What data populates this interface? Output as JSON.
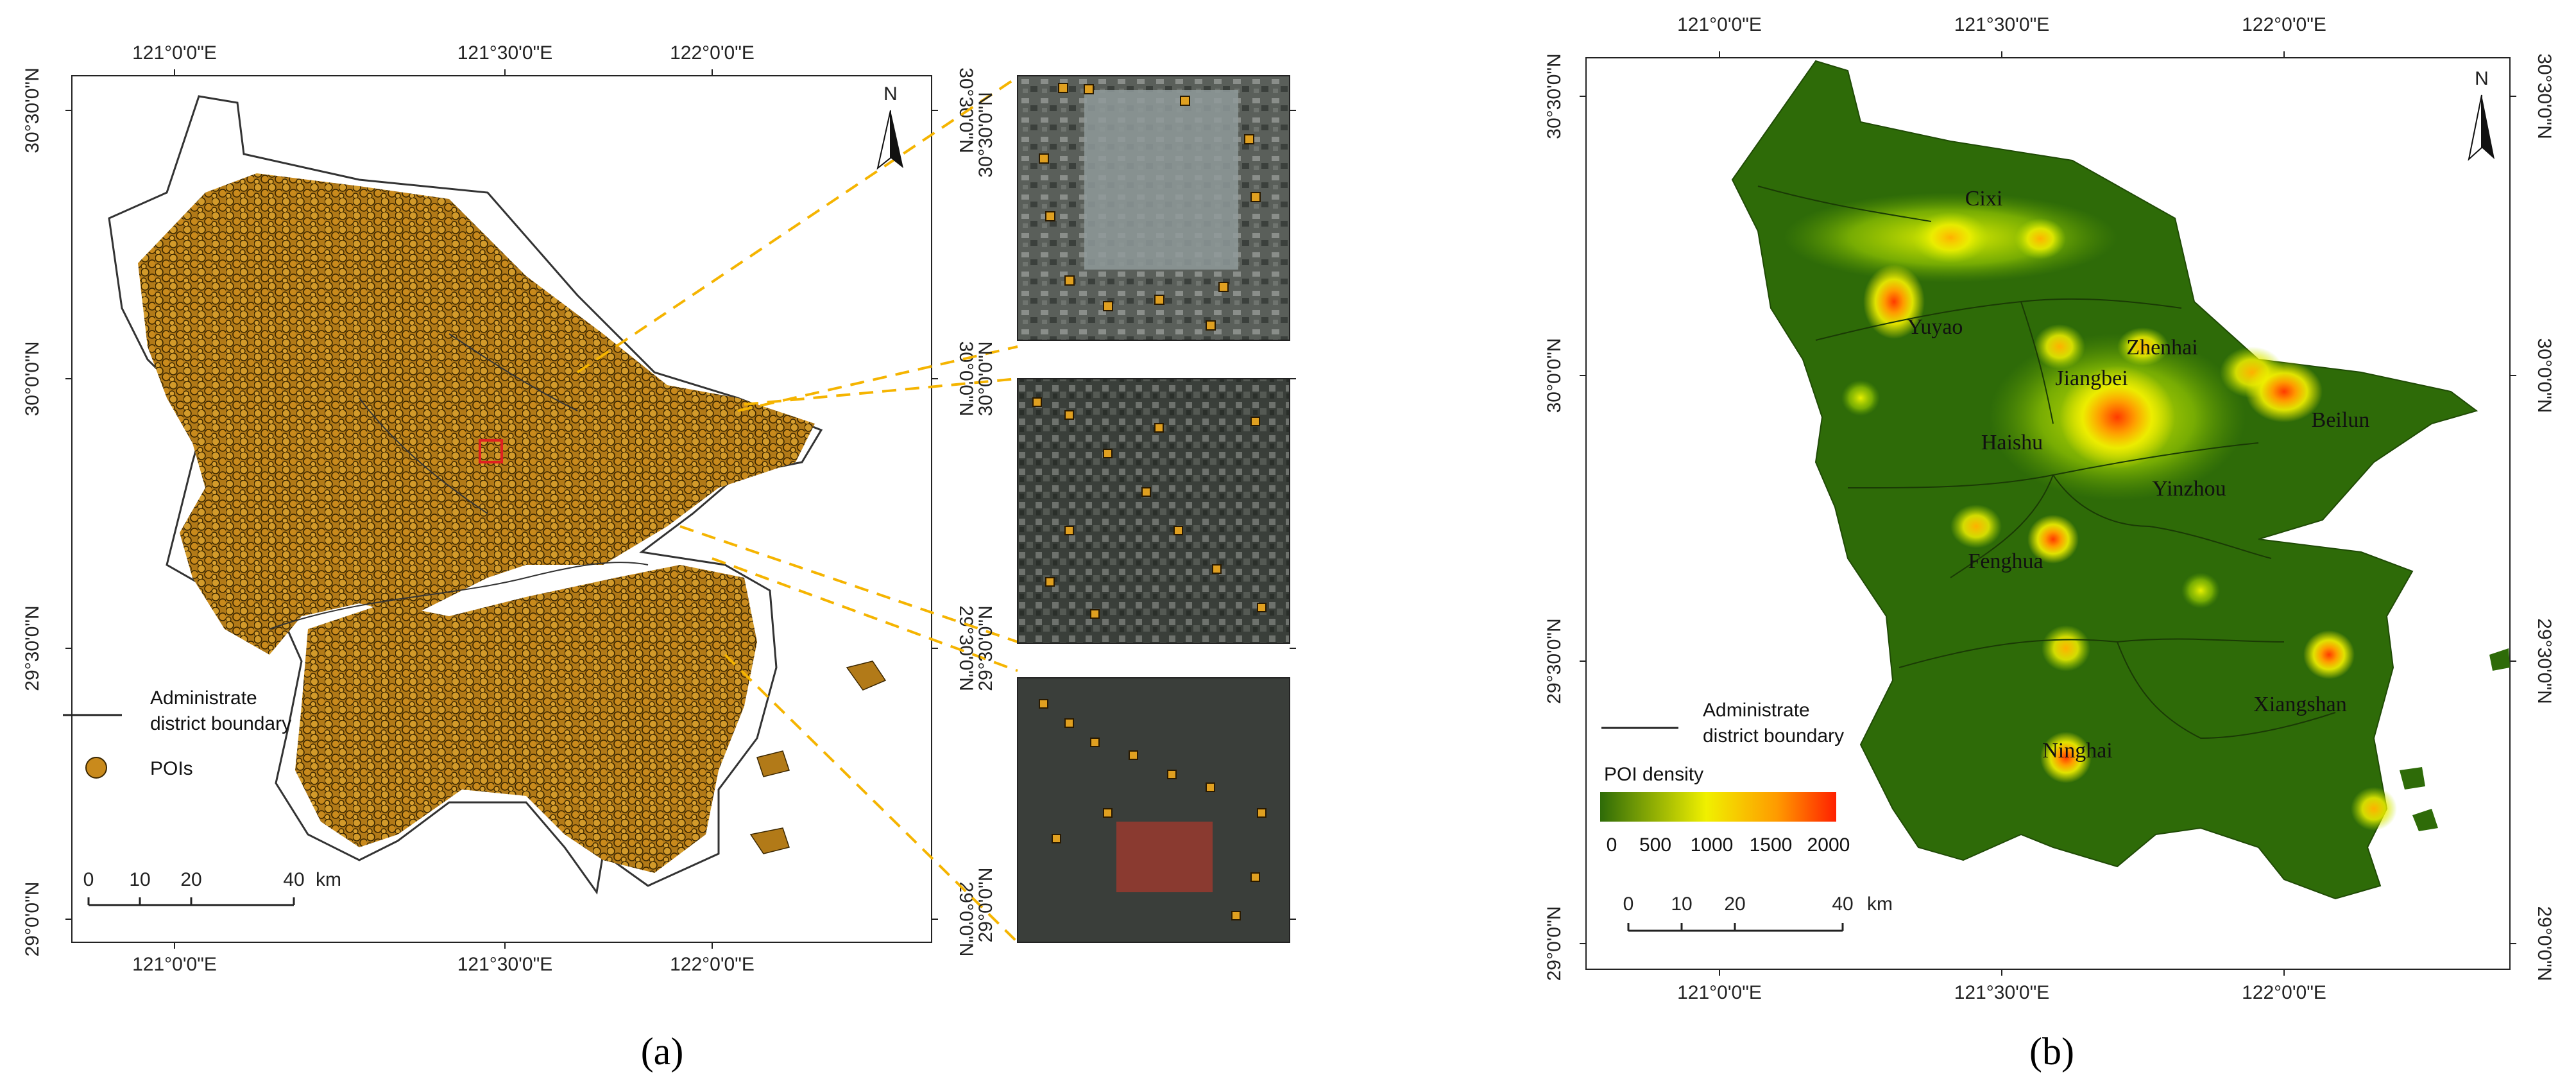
{
  "panel_a": {
    "caption": "(a)",
    "top_ticks": [
      "121°0'0\"E",
      "121°30'0\"E",
      "122°0'0\"E"
    ],
    "bottom_ticks": [
      "121°0'0\"E",
      "121°30'0\"E",
      "122°0'0\"E"
    ],
    "left_ticks": [
      "30°30'0\"N",
      "30°0'0\"N",
      "29°30'0\"N",
      "29°0'0\"N"
    ],
    "right_ticks": [
      "30°30'0\"N",
      "30°0'0\"N",
      "29°30'0\"N",
      "29°0'0\"N"
    ],
    "north_label": "N",
    "legend": {
      "boundary_line1": "Administrate",
      "boundary_line2": "district boundary",
      "pois": "POIs"
    },
    "scale": {
      "labels": [
        "0",
        "10",
        "20",
        "40"
      ],
      "unit": "km"
    },
    "colors": {
      "poi_fill": "#c98a1c",
      "poi_stroke": "#3a2600",
      "leader": "#f5b400",
      "highlight": "#e02020"
    }
  },
  "panel_b": {
    "caption": "(b)",
    "top_ticks": [
      "121°0'0\"E",
      "121°30'0\"E",
      "122°0'0\"E"
    ],
    "bottom_ticks": [
      "121°0'0\"E",
      "121°30'0\"E",
      "122°0'0\"E"
    ],
    "left_ticks": [
      "30°30'0\"N",
      "30°0'0\"N",
      "29°30'0\"N",
      "29°0'0\"N"
    ],
    "right_ticks": [
      "30°30'0\"N",
      "30°0'0\"N",
      "29°30'0\"N",
      "29°0'0\"N"
    ],
    "north_label": "N",
    "districts": [
      "Cixi",
      "Yuyao",
      "Zhenhai",
      "Jiangbei",
      "Haishu",
      "Beilun",
      "Yinzhou",
      "Fenghua",
      "Xiangshan",
      "Ninghai"
    ],
    "legend": {
      "boundary_line1": "Administrate",
      "boundary_line2": "district boundary",
      "density_title": "POI density",
      "density_ticks": [
        "0",
        "500",
        "1000",
        "1500",
        "2000"
      ]
    },
    "scale": {
      "labels": [
        "0",
        "10",
        "20",
        "40"
      ],
      "unit": "km"
    },
    "colors": {
      "base": "#2e6b08",
      "low": "#2e6b08",
      "mid": "#f0f000",
      "high": "#ff8800",
      "peak": "#ff2000"
    }
  }
}
